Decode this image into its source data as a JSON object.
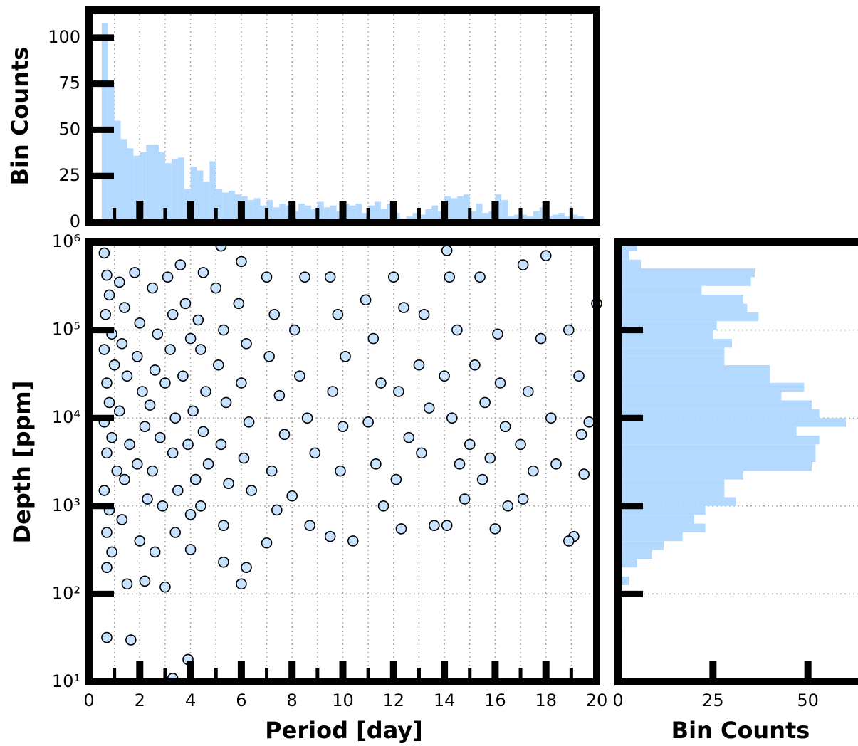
{
  "chart_data": [
    {
      "type": "histogram",
      "orientation": "vertical",
      "ylabel": "Bin Counts",
      "color": "#b3d9ff",
      "bins": [
        0.5,
        0.75,
        1,
        1.25,
        1.5,
        1.75,
        2,
        2.25,
        2.5,
        2.75,
        3,
        3.25,
        3.5,
        3.75,
        4,
        4.25,
        4.5,
        4.75,
        5,
        5.25,
        5.5,
        5.75,
        6,
        6.25,
        6.5,
        6.75,
        7,
        7.25,
        7.5,
        7.75,
        8,
        8.25,
        8.5,
        8.75,
        9,
        9.25,
        9.5,
        9.75,
        10,
        10.25,
        10.5,
        10.75,
        11,
        11.25,
        11.5,
        11.75,
        12,
        12.25,
        12.5,
        12.75,
        13,
        13.25,
        13.5,
        13.75,
        14,
        14.25,
        14.5,
        14.75,
        15,
        15.25,
        15.5,
        15.75,
        16,
        16.25,
        16.5,
        16.75,
        17,
        17.25,
        17.5,
        17.75,
        18,
        18.25,
        18.5,
        18.75,
        19,
        19.25,
        19.5,
        19.75
      ],
      "counts": [
        108,
        74,
        55,
        45,
        40,
        36,
        38,
        42,
        42,
        38,
        32,
        34,
        35,
        18,
        30,
        28,
        22,
        33,
        18,
        16,
        17,
        15,
        14,
        12,
        13,
        9,
        12,
        8,
        10,
        9,
        6,
        10,
        9,
        7,
        11,
        8,
        9,
        6,
        10,
        9,
        10,
        5,
        9,
        11,
        7,
        10,
        5,
        2,
        3,
        5,
        4,
        7,
        9,
        6,
        14,
        13,
        14,
        15,
        6,
        10,
        5,
        6,
        15,
        12,
        3,
        4,
        4,
        3,
        6,
        8,
        3,
        4,
        5,
        3,
        4,
        3,
        1
      ],
      "xlim": [
        0,
        20
      ],
      "xticks": [
        0,
        2,
        4,
        6,
        8,
        10,
        12,
        14,
        16,
        18,
        20
      ],
      "xticks_minor": [
        1,
        3,
        5,
        7,
        9,
        11,
        13,
        15,
        17,
        19
      ],
      "ylim": [
        0,
        115
      ],
      "yticks": [
        0,
        25,
        50,
        75,
        100
      ],
      "grid": "x"
    },
    {
      "type": "scatter",
      "xlabel": "Period [day]",
      "ylabel": "Depth [ppm]",
      "color": "#c6e2ff",
      "edgecolor": "#000000",
      "ylog": true,
      "x": [
        0.6,
        0.7,
        0.8,
        0.65,
        0.9,
        0.6,
        1.0,
        0.7,
        0.8,
        0.6,
        0.9,
        0.7,
        1.1,
        0.6,
        0.8,
        0.7,
        0.9,
        0.7,
        0.7,
        1.2,
        1.4,
        1.3,
        1.5,
        1.2,
        1.6,
        1.4,
        1.3,
        1.5,
        1.65,
        1.8,
        2.0,
        1.9,
        2.1,
        2.2,
        1.9,
        2.3,
        2.0,
        2.2,
        2.5,
        2.7,
        2.6,
        2.4,
        2.8,
        2.5,
        2.9,
        2.6,
        3.0,
        3.1,
        3.3,
        3.2,
        3.0,
        3.4,
        3.3,
        3.5,
        3.4,
        3.3,
        3.9,
        3.6,
        3.8,
        4.0,
        3.7,
        4.1,
        3.9,
        4.2,
        4.0,
        4.5,
        4.3,
        4.4,
        4.6,
        4.5,
        4.7,
        4.4,
        4.0,
        5.2,
        5.0,
        5.3,
        5.1,
        5.4,
        5.2,
        5.5,
        5.3,
        5.3,
        6.0,
        5.9,
        6.2,
        6.0,
        6.3,
        6.1,
        6.4,
        6.2,
        6.0,
        7.0,
        7.3,
        7.1,
        7.5,
        7.7,
        7.2,
        7.4,
        7.0,
        8.5,
        8.1,
        8.3,
        8.6,
        8.9,
        8.0,
        8.7,
        9.5,
        9.8,
        10.1,
        9.6,
        10.0,
        9.9,
        9.5,
        10.4,
        10.9,
        11.2,
        11.5,
        11.0,
        11.3,
        11.6,
        12.0,
        12.4,
        12.2,
        12.6,
        12.1,
        12.3,
        13.2,
        13.0,
        13.4,
        13.1,
        13.6,
        14.1,
        14.2,
        14.5,
        14.0,
        14.3,
        14.6,
        14.8,
        14.1,
        15.4,
        15.2,
        15.6,
        15.0,
        15.5,
        16.0,
        16.1,
        16.2,
        16.4,
        15.8,
        16.5,
        17.1,
        17.3,
        17.0,
        17.1,
        17.5,
        18.0,
        17.8,
        18.2,
        18.4,
        18.9,
        19.1,
        19.3,
        19.4,
        19.5,
        19.7,
        20.0,
        18.9
      ],
      "y": [
        750000,
        420000,
        250000,
        150000,
        90000,
        60000,
        40000,
        25000,
        15000,
        9000,
        6000,
        4000,
        2500,
        1500,
        900,
        500,
        300,
        200,
        32,
        350000,
        180000,
        70000,
        30000,
        12000,
        5000,
        2000,
        700,
        130,
        30,
        450000,
        120000,
        50000,
        20000,
        8000,
        3000,
        1200,
        400,
        140,
        300000,
        90000,
        35000,
        14000,
        6000,
        2500,
        1000,
        300,
        120,
        400000,
        150000,
        60000,
        25000,
        10000,
        4000,
        1500,
        500,
        11,
        18,
        550000,
        200000,
        80000,
        30000,
        12000,
        5000,
        2000,
        800,
        450000,
        130000,
        60000,
        20000,
        7000,
        3000,
        1000,
        320,
        900000,
        300000,
        100000,
        40000,
        15000,
        5000,
        1800,
        600,
        230,
        600000,
        200000,
        70000,
        25000,
        9000,
        3500,
        1500,
        200,
        130,
        400000,
        150000,
        50000,
        18000,
        6500,
        2500,
        900,
        380,
        400000,
        100000,
        30000,
        10000,
        4000,
        1300,
        600,
        400000,
        150000,
        50000,
        20000,
        8000,
        2500,
        450,
        400,
        220000,
        80000,
        25000,
        9000,
        3000,
        1000,
        400000,
        180000,
        20000,
        6000,
        2000,
        550,
        150000,
        40000,
        13000,
        4000,
        600,
        800000,
        400000,
        100000,
        30000,
        10000,
        3000,
        1200,
        600,
        400000,
        40000,
        15000,
        5000,
        2000,
        550,
        90000,
        25000,
        8000,
        3500,
        1000,
        550000,
        20000,
        5000,
        1200,
        2500,
        700000,
        80000,
        10000,
        3000,
        100000,
        450,
        30000,
        6500,
        2300,
        9000,
        200000,
        400
      ],
      "xlim": [
        0,
        20
      ],
      "xticks": [
        0,
        2,
        4,
        6,
        8,
        10,
        12,
        14,
        16,
        18,
        20
      ],
      "xticks_minor": [
        1,
        3,
        5,
        7,
        9,
        11,
        13,
        15,
        17,
        19
      ],
      "ylim": [
        10,
        1000000
      ],
      "yticks": [
        {
          "value": 10,
          "label": "10¹"
        },
        {
          "value": 100,
          "label": "10²"
        },
        {
          "value": 1000,
          "label": "10³"
        },
        {
          "value": 10000,
          "label": "10⁴"
        },
        {
          "value": 100000,
          "label": "10⁵"
        },
        {
          "value": 1000000,
          "label": "10⁶"
        }
      ],
      "grid": "both"
    },
    {
      "type": "histogram",
      "orientation": "horizontal",
      "xlabel": "Bin Counts",
      "color": "#b3d9ff",
      "ylog": true,
      "bins": [
        10,
        12.6,
        15.8,
        20,
        25.1,
        31.6,
        39.8,
        50.1,
        63.1,
        79.4,
        100,
        126,
        158,
        200,
        251,
        316,
        398,
        501,
        631,
        794,
        1000,
        1259,
        1585,
        1995,
        2512,
        3162,
        3981,
        5012,
        6310,
        7943,
        10000,
        12589,
        15849,
        19953,
        25119,
        31623,
        39811,
        50119,
        63096,
        79433,
        100000,
        125893,
        158489,
        199526,
        251189,
        316228,
        398107,
        501187,
        630957,
        794328,
        1000000
      ],
      "counts": [
        0,
        0,
        0,
        0,
        0,
        1,
        0,
        0,
        0,
        0,
        0,
        3,
        0,
        5,
        9,
        12,
        17,
        23,
        20,
        23,
        31,
        28,
        28,
        33,
        51,
        52,
        52,
        53,
        47,
        60,
        53,
        51,
        43,
        49,
        40,
        40,
        28,
        28,
        30,
        25,
        26,
        37,
        34,
        33,
        22,
        35,
        36,
        6,
        3,
        5
      ],
      "xlim": [
        0,
        63
      ],
      "xticks": [
        0,
        25,
        50
      ],
      "ylim": [
        10,
        1000000
      ],
      "yticks": [
        100,
        1000,
        10000,
        100000
      ],
      "grid": "y"
    }
  ]
}
